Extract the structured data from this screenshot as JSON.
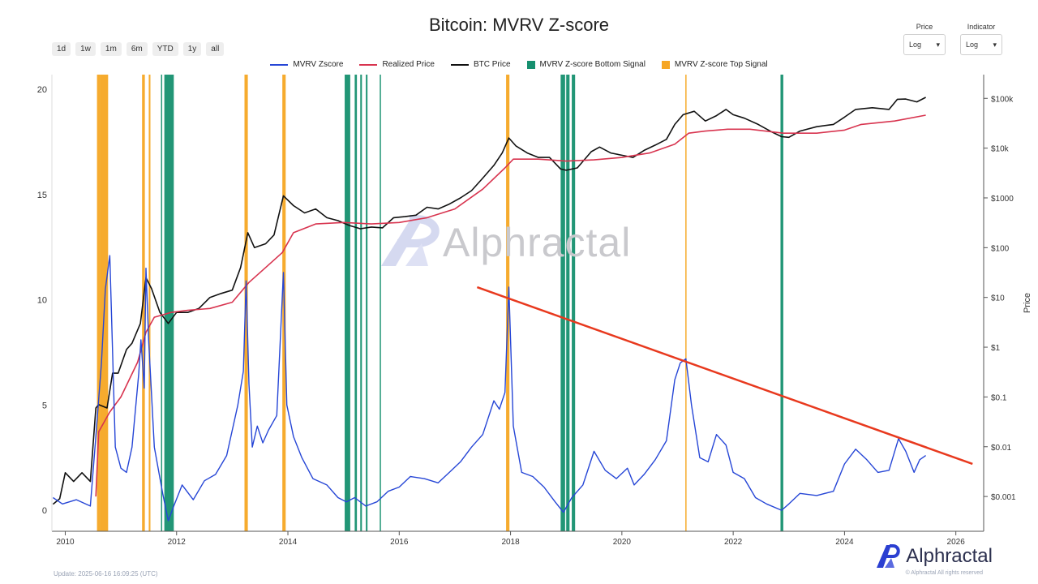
{
  "header": {
    "title": "Bitcoin: MVRV Z-score",
    "range_buttons": [
      "1d",
      "1w",
      "1m",
      "6m",
      "YTD",
      "1y",
      "all"
    ],
    "price_selector": {
      "label": "Price",
      "value": "Log"
    },
    "indicator_selector": {
      "label": "Indicator",
      "value": "Log"
    }
  },
  "legend": [
    {
      "name": "MVRV Zscore",
      "color": "#2646d6",
      "kind": "line"
    },
    {
      "name": "Realized Price",
      "color": "#d8344f",
      "kind": "line"
    },
    {
      "name": "BTC Price",
      "color": "#111111",
      "kind": "line"
    },
    {
      "name": "MVRV Z-score Bottom Signal",
      "color": "#16906f",
      "kind": "box"
    },
    {
      "name": "MVRV Z-score Top Signal",
      "color": "#f6a623",
      "kind": "box"
    }
  ],
  "watermark": {
    "text": "Alphractal"
  },
  "footer": {
    "update": "Update: 2025-06-16 16:09:25 (UTC)",
    "rights": "© Alphractal All rights reserved",
    "brand": "Alphractal"
  },
  "chart_data": {
    "type": "line",
    "title": "Bitcoin: MVRV Z-score",
    "xlabel": "",
    "ylabel_left": "",
    "ylabel_right": "Price",
    "xlim": [
      2009.76,
      2026.5
    ],
    "ylim_left": [
      -1,
      20.7
    ],
    "ylim_right_log": [
      0.0002,
      300000
    ],
    "x_ticks": [
      2010,
      2012,
      2014,
      2016,
      2018,
      2020,
      2022,
      2024,
      2026
    ],
    "y_left_ticks": [
      0,
      5,
      10,
      15,
      20
    ],
    "y_right_ticks": [
      {
        "value": 0.001,
        "label": "$0.001"
      },
      {
        "value": 0.01,
        "label": "$0.01"
      },
      {
        "value": 0.1,
        "label": "$0.1"
      },
      {
        "value": 1,
        "label": "$1"
      },
      {
        "value": 10,
        "label": "$10"
      },
      {
        "value": 100,
        "label": "$100"
      },
      {
        "value": 1000,
        "label": "$1000"
      },
      {
        "value": 10000,
        "label": "$10k"
      },
      {
        "value": 100000,
        "label": "$100k"
      }
    ],
    "grid": false,
    "legend_position": "top-center",
    "series": [
      {
        "name": "BTC Price",
        "axis": "right",
        "color": "#111111",
        "x": [
          2009.78,
          2009.9,
          2010.0,
          2010.15,
          2010.3,
          2010.45,
          2010.55,
          2010.6,
          2010.75,
          2010.85,
          2010.95,
          2011.1,
          2011.2,
          2011.35,
          2011.45,
          2011.55,
          2011.7,
          2011.85,
          2012.0,
          2012.2,
          2012.4,
          2012.6,
          2012.8,
          2013.0,
          2013.15,
          2013.28,
          2013.4,
          2013.6,
          2013.75,
          2013.92,
          2014.1,
          2014.3,
          2014.5,
          2014.7,
          2014.9,
          2015.1,
          2015.3,
          2015.5,
          2015.7,
          2015.9,
          2016.1,
          2016.3,
          2016.5,
          2016.7,
          2016.9,
          2017.1,
          2017.3,
          2017.5,
          2017.7,
          2017.85,
          2017.97,
          2018.1,
          2018.3,
          2018.5,
          2018.7,
          2018.9,
          2019.0,
          2019.2,
          2019.45,
          2019.6,
          2019.8,
          2020.0,
          2020.2,
          2020.4,
          2020.6,
          2020.8,
          2020.95,
          2021.1,
          2021.3,
          2021.5,
          2021.7,
          2021.87,
          2022.0,
          2022.2,
          2022.45,
          2022.7,
          2022.87,
          2023.0,
          2023.2,
          2023.5,
          2023.8,
          2024.0,
          2024.2,
          2024.5,
          2024.8,
          2024.95,
          2025.1,
          2025.3,
          2025.46
        ],
        "y": [
          0.0007,
          0.0009,
          0.003,
          0.002,
          0.003,
          0.002,
          0.06,
          0.07,
          0.06,
          0.3,
          0.3,
          0.9,
          1.2,
          3,
          25,
          15,
          5,
          3,
          5,
          5,
          6,
          10,
          12,
          14,
          40,
          200,
          100,
          120,
          180,
          1100,
          700,
          500,
          600,
          400,
          350,
          280,
          240,
          260,
          250,
          400,
          420,
          450,
          650,
          600,
          750,
          1000,
          1400,
          2500,
          4500,
          8000,
          16000,
          11000,
          8000,
          6500,
          6500,
          3800,
          3600,
          4000,
          8500,
          10500,
          8000,
          7200,
          6500,
          9000,
          11500,
          15000,
          30000,
          47000,
          55000,
          35000,
          45000,
          60000,
          47000,
          40000,
          30000,
          21000,
          17000,
          16500,
          22000,
          27000,
          30000,
          42000,
          60000,
          65000,
          60000,
          96000,
          97000,
          85000,
          105000
        ]
      },
      {
        "name": "Realized Price",
        "axis": "right",
        "color": "#d8344f",
        "x": [
          2010.55,
          2010.6,
          2010.8,
          2011.0,
          2011.3,
          2011.45,
          2011.6,
          2011.9,
          2012.2,
          2012.6,
          2013.0,
          2013.3,
          2013.6,
          2013.9,
          2014.1,
          2014.5,
          2015.0,
          2015.5,
          2016.0,
          2016.5,
          2017.0,
          2017.5,
          2017.9,
          2018.05,
          2018.5,
          2019.0,
          2019.5,
          2020.0,
          2020.5,
          2020.95,
          2021.2,
          2021.5,
          2021.9,
          2022.3,
          2022.9,
          2023.5,
          2024.0,
          2024.3,
          2024.9,
          2025.46
        ],
        "y": [
          0.001,
          0.02,
          0.05,
          0.1,
          0.5,
          2,
          4,
          5,
          5.5,
          6,
          8,
          20,
          40,
          80,
          200,
          300,
          320,
          300,
          320,
          400,
          600,
          1500,
          4000,
          6000,
          6000,
          5500,
          5800,
          6500,
          8000,
          12000,
          20000,
          22000,
          24000,
          24000,
          20000,
          20000,
          23000,
          30000,
          35000,
          46000
        ]
      },
      {
        "name": "MVRV Zscore",
        "axis": "left",
        "color": "#2646d6",
        "x": [
          2009.78,
          2009.95,
          2010.2,
          2010.45,
          2010.55,
          2010.65,
          2010.72,
          2010.8,
          2010.9,
          2011.0,
          2011.1,
          2011.2,
          2011.32,
          2011.36,
          2011.42,
          2011.45,
          2011.5,
          2011.6,
          2011.75,
          2011.85,
          2011.95,
          2012.1,
          2012.3,
          2012.5,
          2012.7,
          2012.9,
          2013.1,
          2013.2,
          2013.25,
          2013.3,
          2013.36,
          2013.45,
          2013.55,
          2013.65,
          2013.8,
          2013.92,
          2013.98,
          2014.1,
          2014.25,
          2014.45,
          2014.7,
          2014.9,
          2015.05,
          2015.2,
          2015.4,
          2015.6,
          2015.8,
          2016.0,
          2016.2,
          2016.45,
          2016.7,
          2016.9,
          2017.1,
          2017.3,
          2017.5,
          2017.7,
          2017.8,
          2017.9,
          2017.97,
          2018.05,
          2018.2,
          2018.4,
          2018.6,
          2018.8,
          2018.95,
          2019.1,
          2019.3,
          2019.5,
          2019.7,
          2019.9,
          2020.1,
          2020.22,
          2020.4,
          2020.6,
          2020.8,
          2020.95,
          2021.05,
          2021.15,
          2021.25,
          2021.4,
          2021.55,
          2021.7,
          2021.87,
          2022.0,
          2022.2,
          2022.4,
          2022.6,
          2022.87,
          2023.0,
          2023.2,
          2023.5,
          2023.8,
          2024.0,
          2024.2,
          2024.4,
          2024.6,
          2024.8,
          2024.97,
          2025.1,
          2025.25,
          2025.35,
          2025.46
        ],
        "y": [
          0.6,
          0.3,
          0.5,
          0.2,
          3.5,
          7,
          10.5,
          12.1,
          3,
          2,
          1.8,
          3,
          6.5,
          8.1,
          5.8,
          11.5,
          8,
          3,
          0.8,
          -0.5,
          0.2,
          1.2,
          0.5,
          1.4,
          1.7,
          2.6,
          5,
          6.6,
          10.9,
          6,
          3,
          4,
          3.2,
          3.8,
          4.5,
          11.3,
          5,
          3.5,
          2.5,
          1.5,
          1.2,
          0.6,
          0.4,
          0.6,
          0.2,
          0.4,
          0.9,
          1.1,
          1.6,
          1.5,
          1.3,
          1.8,
          2.3,
          3,
          3.6,
          5.2,
          4.8,
          5.6,
          10.6,
          4,
          1.8,
          1.6,
          1.1,
          0.4,
          -0.1,
          0.6,
          1.2,
          2.8,
          1.9,
          1.5,
          2,
          1.2,
          1.7,
          2.4,
          3.3,
          6.2,
          7,
          7.2,
          5,
          2.5,
          2.3,
          3.6,
          3.1,
          1.8,
          1.5,
          0.6,
          0.3,
          0,
          0.3,
          0.8,
          0.7,
          0.9,
          2.2,
          2.9,
          2.4,
          1.8,
          1.9,
          3.4,
          2.8,
          1.8,
          2.4,
          2.6
        ]
      }
    ],
    "bottom_signals": [
      [
        2011.72,
        2011.74
      ],
      [
        2011.78,
        2011.95
      ],
      [
        2015.02,
        2015.12
      ],
      [
        2015.2,
        2015.24
      ],
      [
        2015.3,
        2015.33
      ],
      [
        2015.4,
        2015.43
      ],
      [
        2015.65,
        2015.67
      ],
      [
        2018.9,
        2018.98
      ],
      [
        2019.0,
        2019.06
      ],
      [
        2019.1,
        2019.16
      ],
      [
        2022.85,
        2022.9
      ]
    ],
    "top_signals": [
      [
        2010.57,
        2010.62
      ],
      [
        2010.62,
        2010.77
      ],
      [
        2011.38,
        2011.43
      ],
      [
        2011.5,
        2011.53
      ],
      [
        2013.22,
        2013.28
      ],
      [
        2013.9,
        2013.96
      ],
      [
        2017.92,
        2017.98
      ],
      [
        2021.14,
        2021.16
      ]
    ],
    "annotations": [
      {
        "type": "trend_line",
        "color": "#e8391e",
        "from": {
          "x": 2017.4,
          "y": 10.6
        },
        "to": {
          "x": 2026.3,
          "y": 2.2
        }
      }
    ]
  }
}
